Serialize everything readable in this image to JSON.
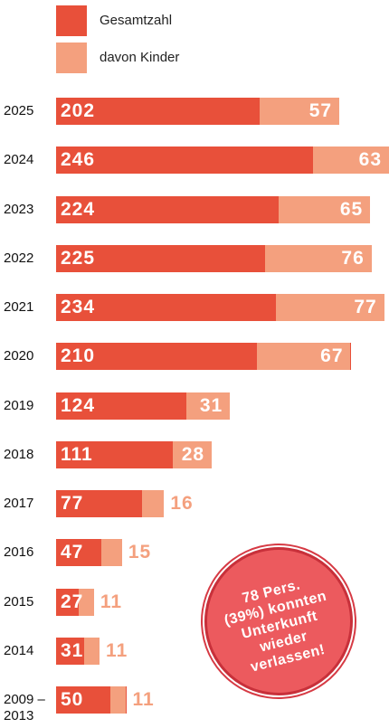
{
  "chart_data": {
    "type": "bar",
    "orientation": "horizontal",
    "categories": [
      "2025",
      "2024",
      "2023",
      "2022",
      "2021",
      "2020",
      "2019",
      "2018",
      "2017",
      "2016",
      "2015",
      "2014",
      "2009 –2013"
    ],
    "series": [
      {
        "name": "Gesamtzahl",
        "color": "#e8503a",
        "values": [
          202,
          246,
          224,
          225,
          234,
          210,
          124,
          111,
          77,
          47,
          27,
          31,
          50
        ]
      },
      {
        "name": "davon Kinder",
        "color": "#f4a07e",
        "values": [
          57,
          63,
          65,
          76,
          77,
          67,
          31,
          28,
          16,
          15,
          11,
          11,
          11
        ]
      }
    ],
    "annotation": [
      "78 Pers.",
      "(39%) konnten",
      "Unterkunft",
      "wieder",
      "verlassen!"
    ],
    "annotation_color": "#ec5a5e"
  }
}
